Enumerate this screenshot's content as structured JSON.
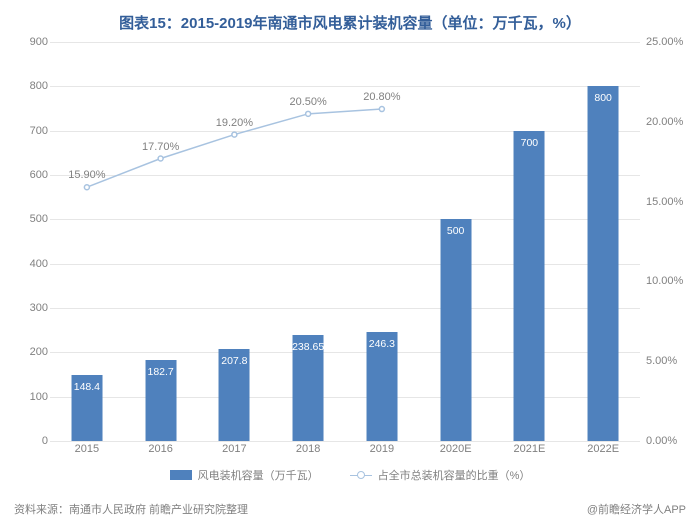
{
  "chart": {
    "type": "combo-bar-line",
    "title": "图表15：2015-2019年南通市风电累计装机容量（单位：万千瓦，%）",
    "title_color": "#335e99",
    "title_fontsize": 15,
    "background_color": "#ffffff",
    "grid_color": "#e6e6e6",
    "axis_text_color": "#808080",
    "axis_fontsize": 11,
    "categories": [
      "2015",
      "2016",
      "2017",
      "2018",
      "2019",
      "2020E",
      "2021E",
      "2022E"
    ],
    "bar_series": {
      "name": "风电装机容量（万千瓦）",
      "values": [
        148.4,
        182.7,
        207.8,
        238.65,
        246.3,
        500,
        700,
        800
      ],
      "color": "#4f81bd",
      "label_color": "#ffffff",
      "bar_width_ratio": 0.42
    },
    "line_series": {
      "name": "占全市总装机容量的比重（%）",
      "values": [
        15.9,
        17.7,
        19.2,
        20.5,
        20.8
      ],
      "value_labels": [
        "15.90%",
        "17.70%",
        "19.20%",
        "20.50%",
        "20.80%"
      ],
      "color": "#a8c3e0",
      "marker_style": "circle",
      "marker_fill": "#ffffff",
      "marker_stroke": "#a8c3e0",
      "marker_size": 5,
      "line_width": 1.5
    },
    "left_y_axis": {
      "min": 0,
      "max": 900,
      "step": 100,
      "ticks": [
        "0",
        "100",
        "200",
        "300",
        "400",
        "500",
        "600",
        "700",
        "800",
        "900"
      ]
    },
    "right_y_axis": {
      "min": 0,
      "max": 25,
      "step": 5,
      "ticks": [
        "0.00%",
        "5.00%",
        "10.00%",
        "15.00%",
        "20.00%",
        "25.00%"
      ]
    },
    "legend": {
      "items": [
        "风电装机容量（万千瓦）",
        "占全市总装机容量的比重（%）"
      ]
    },
    "footer": {
      "source": "资料来源：南通市人民政府  前瞻产业研究院整理",
      "attribution": "@前瞻经济学人APP"
    }
  }
}
